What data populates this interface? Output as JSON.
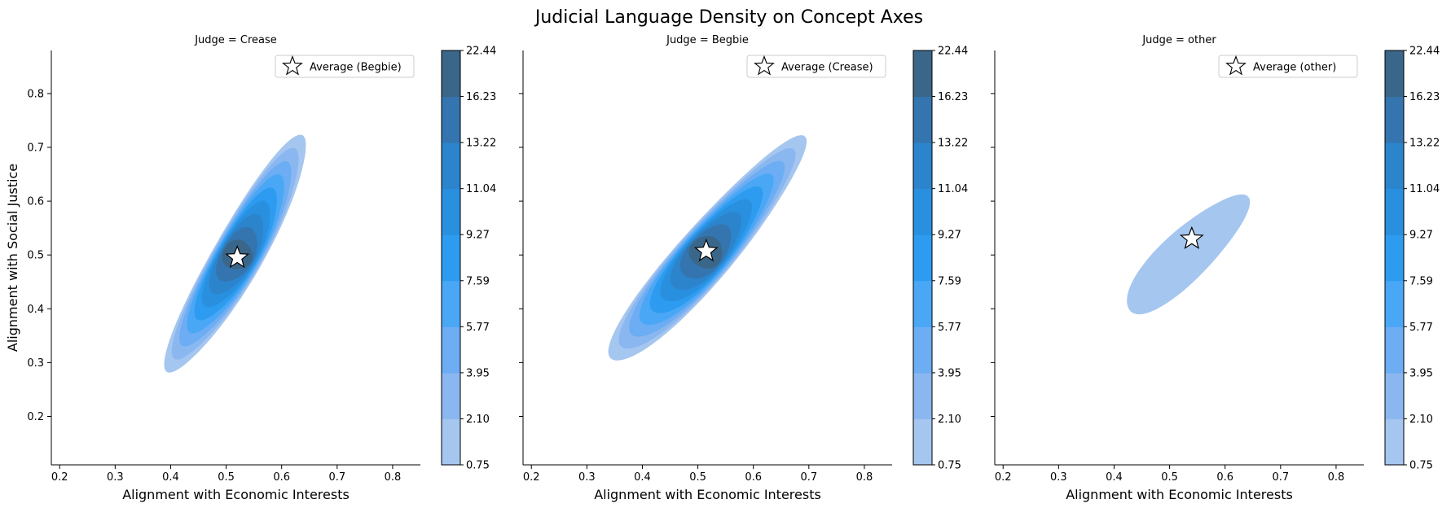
{
  "figure": {
    "title": "Judicial Language Density on Concept Axes"
  },
  "chart_data": [
    {
      "type": "kde-filled-contour",
      "title": "Judge = Crease",
      "xlabel": "Alignment with Economic Interests",
      "ylabel": "Alignment with Social Justice",
      "xlim": [
        0.185,
        0.85
      ],
      "ylim": [
        0.11,
        0.88
      ],
      "x_ticks": [
        "0.2",
        "0.3",
        "0.4",
        "0.5",
        "0.6",
        "0.7",
        "0.8"
      ],
      "y_ticks": [
        "0.2",
        "0.3",
        "0.4",
        "0.5",
        "0.6",
        "0.7",
        "0.8"
      ],
      "density_center": [
        0.52,
        0.5
      ],
      "density_axes": [
        0.25,
        0.045
      ],
      "density_angle_deg": 61,
      "density_peak_level": 9,
      "marker": {
        "x": 0.52,
        "y": 0.495,
        "shape": "star",
        "label": "Average (Begbie)"
      },
      "legend_position": "top-right",
      "colorbar_ticks": [
        "0.75",
        "2.10",
        "3.95",
        "5.77",
        "7.59",
        "9.27",
        "11.04",
        "13.22",
        "16.23",
        "22.44"
      ]
    },
    {
      "type": "kde-filled-contour",
      "title": "Judge = Begbie",
      "xlabel": "Alignment with Economic Interests",
      "ylabel": "",
      "xlim": [
        0.185,
        0.85
      ],
      "ylim": [
        0.11,
        0.88
      ],
      "x_ticks": [
        "0.2",
        "0.3",
        "0.4",
        "0.5",
        "0.6",
        "0.7",
        "0.8"
      ],
      "y_ticks": [
        "",
        "",
        "",
        "",
        "",
        "",
        ""
      ],
      "density_center": [
        0.515,
        0.505
      ],
      "density_axes": [
        0.27,
        0.05
      ],
      "density_angle_deg": 50,
      "density_peak_level": 9,
      "marker": {
        "x": 0.515,
        "y": 0.507,
        "shape": "star",
        "label": "Average (Crease)"
      },
      "legend_position": "top-right",
      "colorbar_ticks": [
        "0.75",
        "2.10",
        "3.95",
        "5.77",
        "7.59",
        "9.27",
        "11.04",
        "13.22",
        "16.23",
        "22.44"
      ]
    },
    {
      "type": "kde-filled-contour",
      "title": "Judge = other",
      "xlabel": "Alignment with Economic Interests",
      "ylabel": "",
      "xlim": [
        0.185,
        0.85
      ],
      "ylim": [
        0.11,
        0.88
      ],
      "x_ticks": [
        "0.2",
        "0.3",
        "0.4",
        "0.5",
        "0.6",
        "0.7",
        "0.8"
      ],
      "y_ticks": [
        "",
        "",
        "",
        "",
        "",
        "",
        ""
      ],
      "density_center": [
        0.53,
        0.5
      ],
      "density_axes": [
        0.15,
        0.045
      ],
      "density_angle_deg": 45,
      "density_peak_level": 1,
      "marker": {
        "x": 0.54,
        "y": 0.53,
        "shape": "star",
        "label": "Average (other)"
      },
      "legend_position": "top-right",
      "colorbar_ticks": [
        "0.75",
        "2.10",
        "3.95",
        "5.77",
        "7.59",
        "9.27",
        "11.04",
        "13.22",
        "16.23",
        "22.44"
      ]
    }
  ],
  "colors": {
    "levels": [
      "#a5c6ef",
      "#8bb7f0",
      "#6cadf3",
      "#4aa7f6",
      "#2d9cf0",
      "#2990e0",
      "#2c84cc",
      "#3475b0",
      "#3a6689"
    ],
    "marker_fill": "#ffffff",
    "marker_stroke": "#000000",
    "axis": "#000000"
  }
}
